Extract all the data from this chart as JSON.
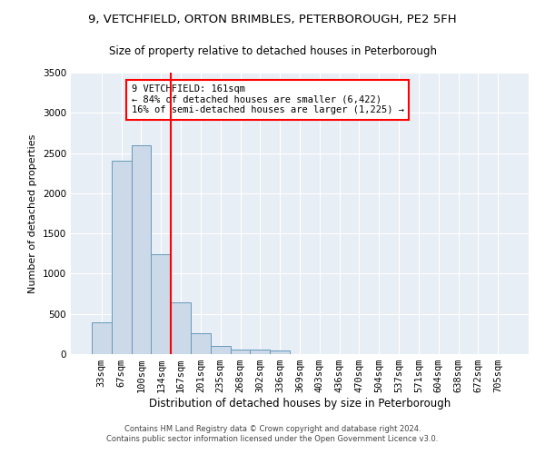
{
  "title1": "9, VETCHFIELD, ORTON BRIMBLES, PETERBOROUGH, PE2 5FH",
  "title2": "Size of property relative to detached houses in Peterborough",
  "xlabel": "Distribution of detached houses by size in Peterborough",
  "ylabel": "Number of detached properties",
  "categories": [
    "33sqm",
    "67sqm",
    "100sqm",
    "134sqm",
    "167sqm",
    "201sqm",
    "235sqm",
    "268sqm",
    "302sqm",
    "336sqm",
    "369sqm",
    "403sqm",
    "436sqm",
    "470sqm",
    "504sqm",
    "537sqm",
    "571sqm",
    "604sqm",
    "638sqm",
    "672sqm",
    "705sqm"
  ],
  "bar_values": [
    390,
    2400,
    2600,
    1240,
    640,
    260,
    100,
    60,
    55,
    40,
    0,
    0,
    0,
    0,
    0,
    0,
    0,
    0,
    0,
    0,
    0
  ],
  "bar_color": "#ccd9e8",
  "bar_edge_color": "#6699bb",
  "vline_color": "red",
  "annotation_text": "9 VETCHFIELD: 161sqm\n← 84% of detached houses are smaller (6,422)\n16% of semi-detached houses are larger (1,225) →",
  "annotation_box_color": "white",
  "annotation_box_edge": "red",
  "ylim": [
    0,
    3500
  ],
  "yticks": [
    0,
    500,
    1000,
    1500,
    2000,
    2500,
    3000,
    3500
  ],
  "footnote": "Contains HM Land Registry data © Crown copyright and database right 2024.\nContains public sector information licensed under the Open Government Licence v3.0.",
  "bg_color": "#e8eef5",
  "grid_color": "#ffffff",
  "fig_bg_color": "#ffffff",
  "title1_fontsize": 9.5,
  "title2_fontsize": 8.5,
  "xlabel_fontsize": 8.5,
  "ylabel_fontsize": 8,
  "tick_fontsize": 7.5,
  "annot_fontsize": 7.5,
  "footnote_fontsize": 6
}
